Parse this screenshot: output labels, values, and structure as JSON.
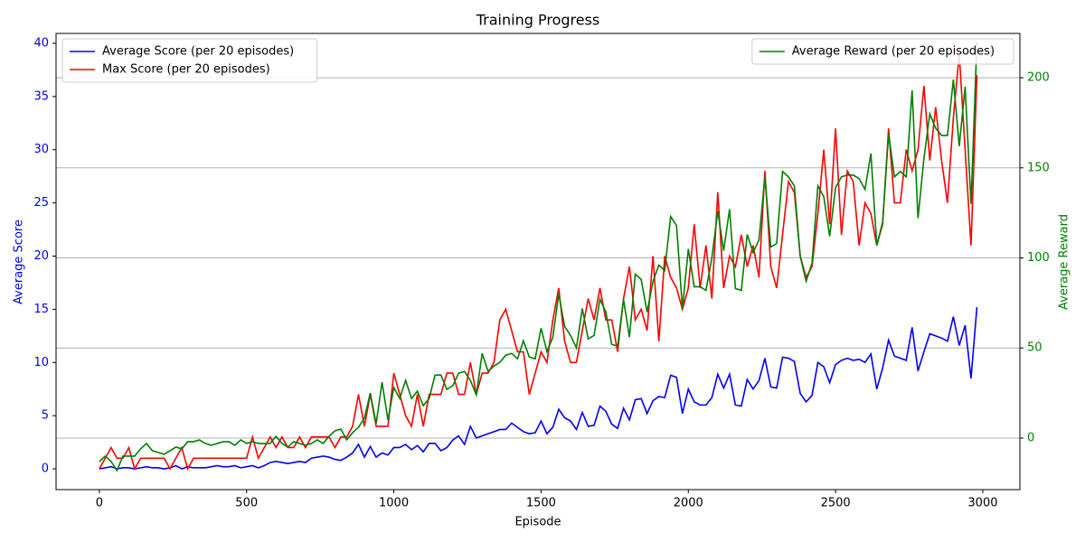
{
  "chart_data": {
    "type": "line",
    "title": "Training Progress",
    "xlabel": "Episode",
    "ylabel": "Average Score",
    "y2label": "Average Reward",
    "x": [
      0,
      20,
      40,
      60,
      80,
      100,
      120,
      140,
      160,
      180,
      200,
      220,
      240,
      260,
      280,
      300,
      320,
      340,
      360,
      380,
      400,
      420,
      440,
      460,
      480,
      500,
      520,
      540,
      560,
      580,
      600,
      620,
      640,
      660,
      680,
      700,
      720,
      740,
      760,
      780,
      800,
      820,
      840,
      860,
      880,
      900,
      920,
      940,
      960,
      980,
      1000,
      1020,
      1040,
      1060,
      1080,
      1100,
      1120,
      1140,
      1160,
      1180,
      1200,
      1220,
      1240,
      1260,
      1280,
      1300,
      1320,
      1340,
      1360,
      1380,
      1400,
      1420,
      1440,
      1460,
      1480,
      1500,
      1520,
      1540,
      1560,
      1580,
      1600,
      1620,
      1640,
      1660,
      1680,
      1700,
      1720,
      1740,
      1760,
      1780,
      1800,
      1820,
      1840,
      1860,
      1880,
      1900,
      1920,
      1940,
      1960,
      1980,
      2000,
      2020,
      2040,
      2060,
      2080,
      2100,
      2120,
      2140,
      2160,
      2180,
      2200,
      2220,
      2240,
      2260,
      2280,
      2300,
      2320,
      2340,
      2360,
      2380,
      2400,
      2420,
      2440,
      2460,
      2480,
      2500,
      2520,
      2540,
      2560,
      2580,
      2600,
      2620,
      2640,
      2660,
      2680,
      2700,
      2720,
      2740,
      2760,
      2780,
      2800,
      2820,
      2840,
      2860,
      2880,
      2900,
      2920,
      2940,
      2960,
      2980
    ],
    "series": [
      {
        "name": "Average Score (per 20 episodes)",
        "color": "#0000ff",
        "axis": "y",
        "values": [
          0,
          0.1,
          0.2,
          0,
          0.1,
          0.1,
          0,
          0.1,
          0.2,
          0.1,
          0.1,
          0,
          0.1,
          0.3,
          0,
          0.2,
          0.1,
          0.1,
          0.1,
          0.2,
          0.3,
          0.2,
          0.2,
          0.3,
          0.1,
          0.2,
          0.3,
          0.1,
          0.3,
          0.6,
          0.7,
          0.6,
          0.5,
          0.6,
          0.7,
          0.6,
          1,
          1.1,
          1.2,
          1.1,
          0.9,
          0.8,
          1.1,
          1.5,
          2.3,
          1.1,
          2.1,
          1.1,
          1.5,
          1.3,
          2,
          2,
          2.3,
          1.8,
          2.2,
          1.6,
          2.4,
          2.4,
          1.7,
          2,
          2.7,
          3.1,
          2.3,
          4,
          2.9,
          3.1,
          3.3,
          3.5,
          3.7,
          3.7,
          4.3,
          3.9,
          3.5,
          3.3,
          3.4,
          4.5,
          3.3,
          3.9,
          5.6,
          4.8,
          4.5,
          3.7,
          5.3,
          4,
          4.1,
          5.9,
          5.4,
          4.2,
          3.8,
          5.7,
          4.6,
          6.5,
          6.6,
          5.2,
          6.4,
          6.8,
          6.7,
          8.8,
          8.6,
          5.2,
          7.5,
          6.3,
          6,
          6,
          6.7,
          8.9,
          7.6,
          8.9,
          6,
          5.9,
          8.4,
          7.5,
          8.3,
          10.4,
          7.7,
          7.6,
          10.5,
          10.4,
          10.1,
          7.1,
          6.3,
          6.9,
          10,
          9.6,
          8.1,
          9.8,
          10.2,
          10.4,
          10.2,
          10.3,
          10,
          10.8,
          7.5,
          9.5,
          12.1,
          10.6,
          10.4,
          10.2,
          13.3,
          9.2,
          11,
          12.7,
          12.5,
          12.3,
          12,
          14.3,
          11.6,
          13.5,
          8.5,
          15.2
        ]
      },
      {
        "name": "Max Score (per 20 episodes)",
        "color": "#ff0000",
        "axis": "y",
        "values": [
          0,
          1,
          2,
          1,
          1,
          2,
          0,
          1,
          1,
          1,
          1,
          1,
          0,
          1,
          2,
          0,
          1,
          1,
          1,
          1,
          1,
          1,
          1,
          1,
          1,
          1,
          3,
          1,
          2,
          3,
          2,
          3,
          2,
          2,
          3,
          2,
          3,
          3,
          3,
          3,
          2,
          3,
          3,
          4,
          7,
          4,
          7,
          4,
          4,
          4,
          9,
          7,
          5,
          4,
          7,
          4,
          7,
          7,
          7,
          9,
          9,
          7,
          7,
          10,
          7,
          9,
          9,
          10,
          14,
          15,
          13,
          11,
          11,
          7,
          9,
          11,
          10,
          14,
          17,
          12,
          10,
          10,
          13,
          16,
          14,
          17,
          14,
          14,
          11,
          16,
          19,
          14,
          15,
          13,
          20,
          12,
          20,
          18,
          17,
          15,
          17,
          23,
          17,
          21,
          16,
          26,
          17,
          20,
          19,
          22,
          19,
          21,
          18,
          28,
          19,
          17,
          22,
          27,
          26,
          20,
          18,
          19,
          24,
          30,
          23,
          32,
          22,
          28,
          27,
          21,
          25,
          24,
          21,
          23,
          32,
          25,
          25,
          30,
          28,
          30,
          36,
          29,
          34,
          29,
          25,
          33,
          39,
          30,
          21,
          37
        ]
      },
      {
        "name": "Average Reward (per 20 episodes)",
        "color": "#008000",
        "axis": "y2",
        "values": [
          -13,
          -10,
          -13,
          -18,
          -10,
          -10,
          -10,
          -6,
          -3,
          -7,
          -8,
          -9,
          -7,
          -5,
          -6,
          -2,
          -2,
          -1,
          -3,
          -4,
          -3,
          -2,
          -2,
          -4,
          -1,
          -3,
          -2,
          -3,
          -3,
          -3,
          1,
          -3,
          -5,
          -2,
          -3,
          -4,
          -3,
          -1,
          -3,
          1,
          4,
          5,
          -1,
          3,
          6,
          11,
          25,
          8,
          31,
          10,
          28,
          22,
          32,
          22,
          26,
          18,
          22,
          35,
          35,
          27,
          29,
          36,
          37,
          32,
          24,
          47,
          37,
          40,
          42,
          46,
          47,
          44,
          54,
          45,
          44,
          61,
          48,
          56,
          80,
          62,
          57,
          50,
          72,
          55,
          57,
          77,
          70,
          52,
          51,
          77,
          56,
          91,
          88,
          70,
          87,
          96,
          93,
          123,
          118,
          72,
          105,
          84,
          84,
          82,
          100,
          126,
          104,
          127,
          83,
          82,
          113,
          103,
          110,
          145,
          106,
          108,
          148,
          145,
          140,
          101,
          87,
          97,
          140,
          134,
          112,
          139,
          145,
          146,
          146,
          144,
          138,
          158,
          107,
          120,
          169,
          145,
          148,
          145,
          193,
          122,
          155,
          180,
          172,
          168,
          168,
          199,
          162,
          195,
          130,
          220
        ]
      }
    ],
    "xlim": [
      -147,
      3126
    ],
    "xticks": [
      0,
      500,
      1000,
      1500,
      2000,
      2500,
      3000
    ],
    "ylim": [
      -1.95,
      40.93
    ],
    "yticks": [
      0,
      5,
      10,
      15,
      20,
      25,
      30,
      35,
      40
    ],
    "y2lim": [
      -28.6,
      224.6
    ],
    "y2ticks": [
      0,
      50,
      100,
      150,
      200
    ],
    "grid": "y2",
    "legend_loc": "upper left",
    "legend2_loc": "upper right"
  }
}
